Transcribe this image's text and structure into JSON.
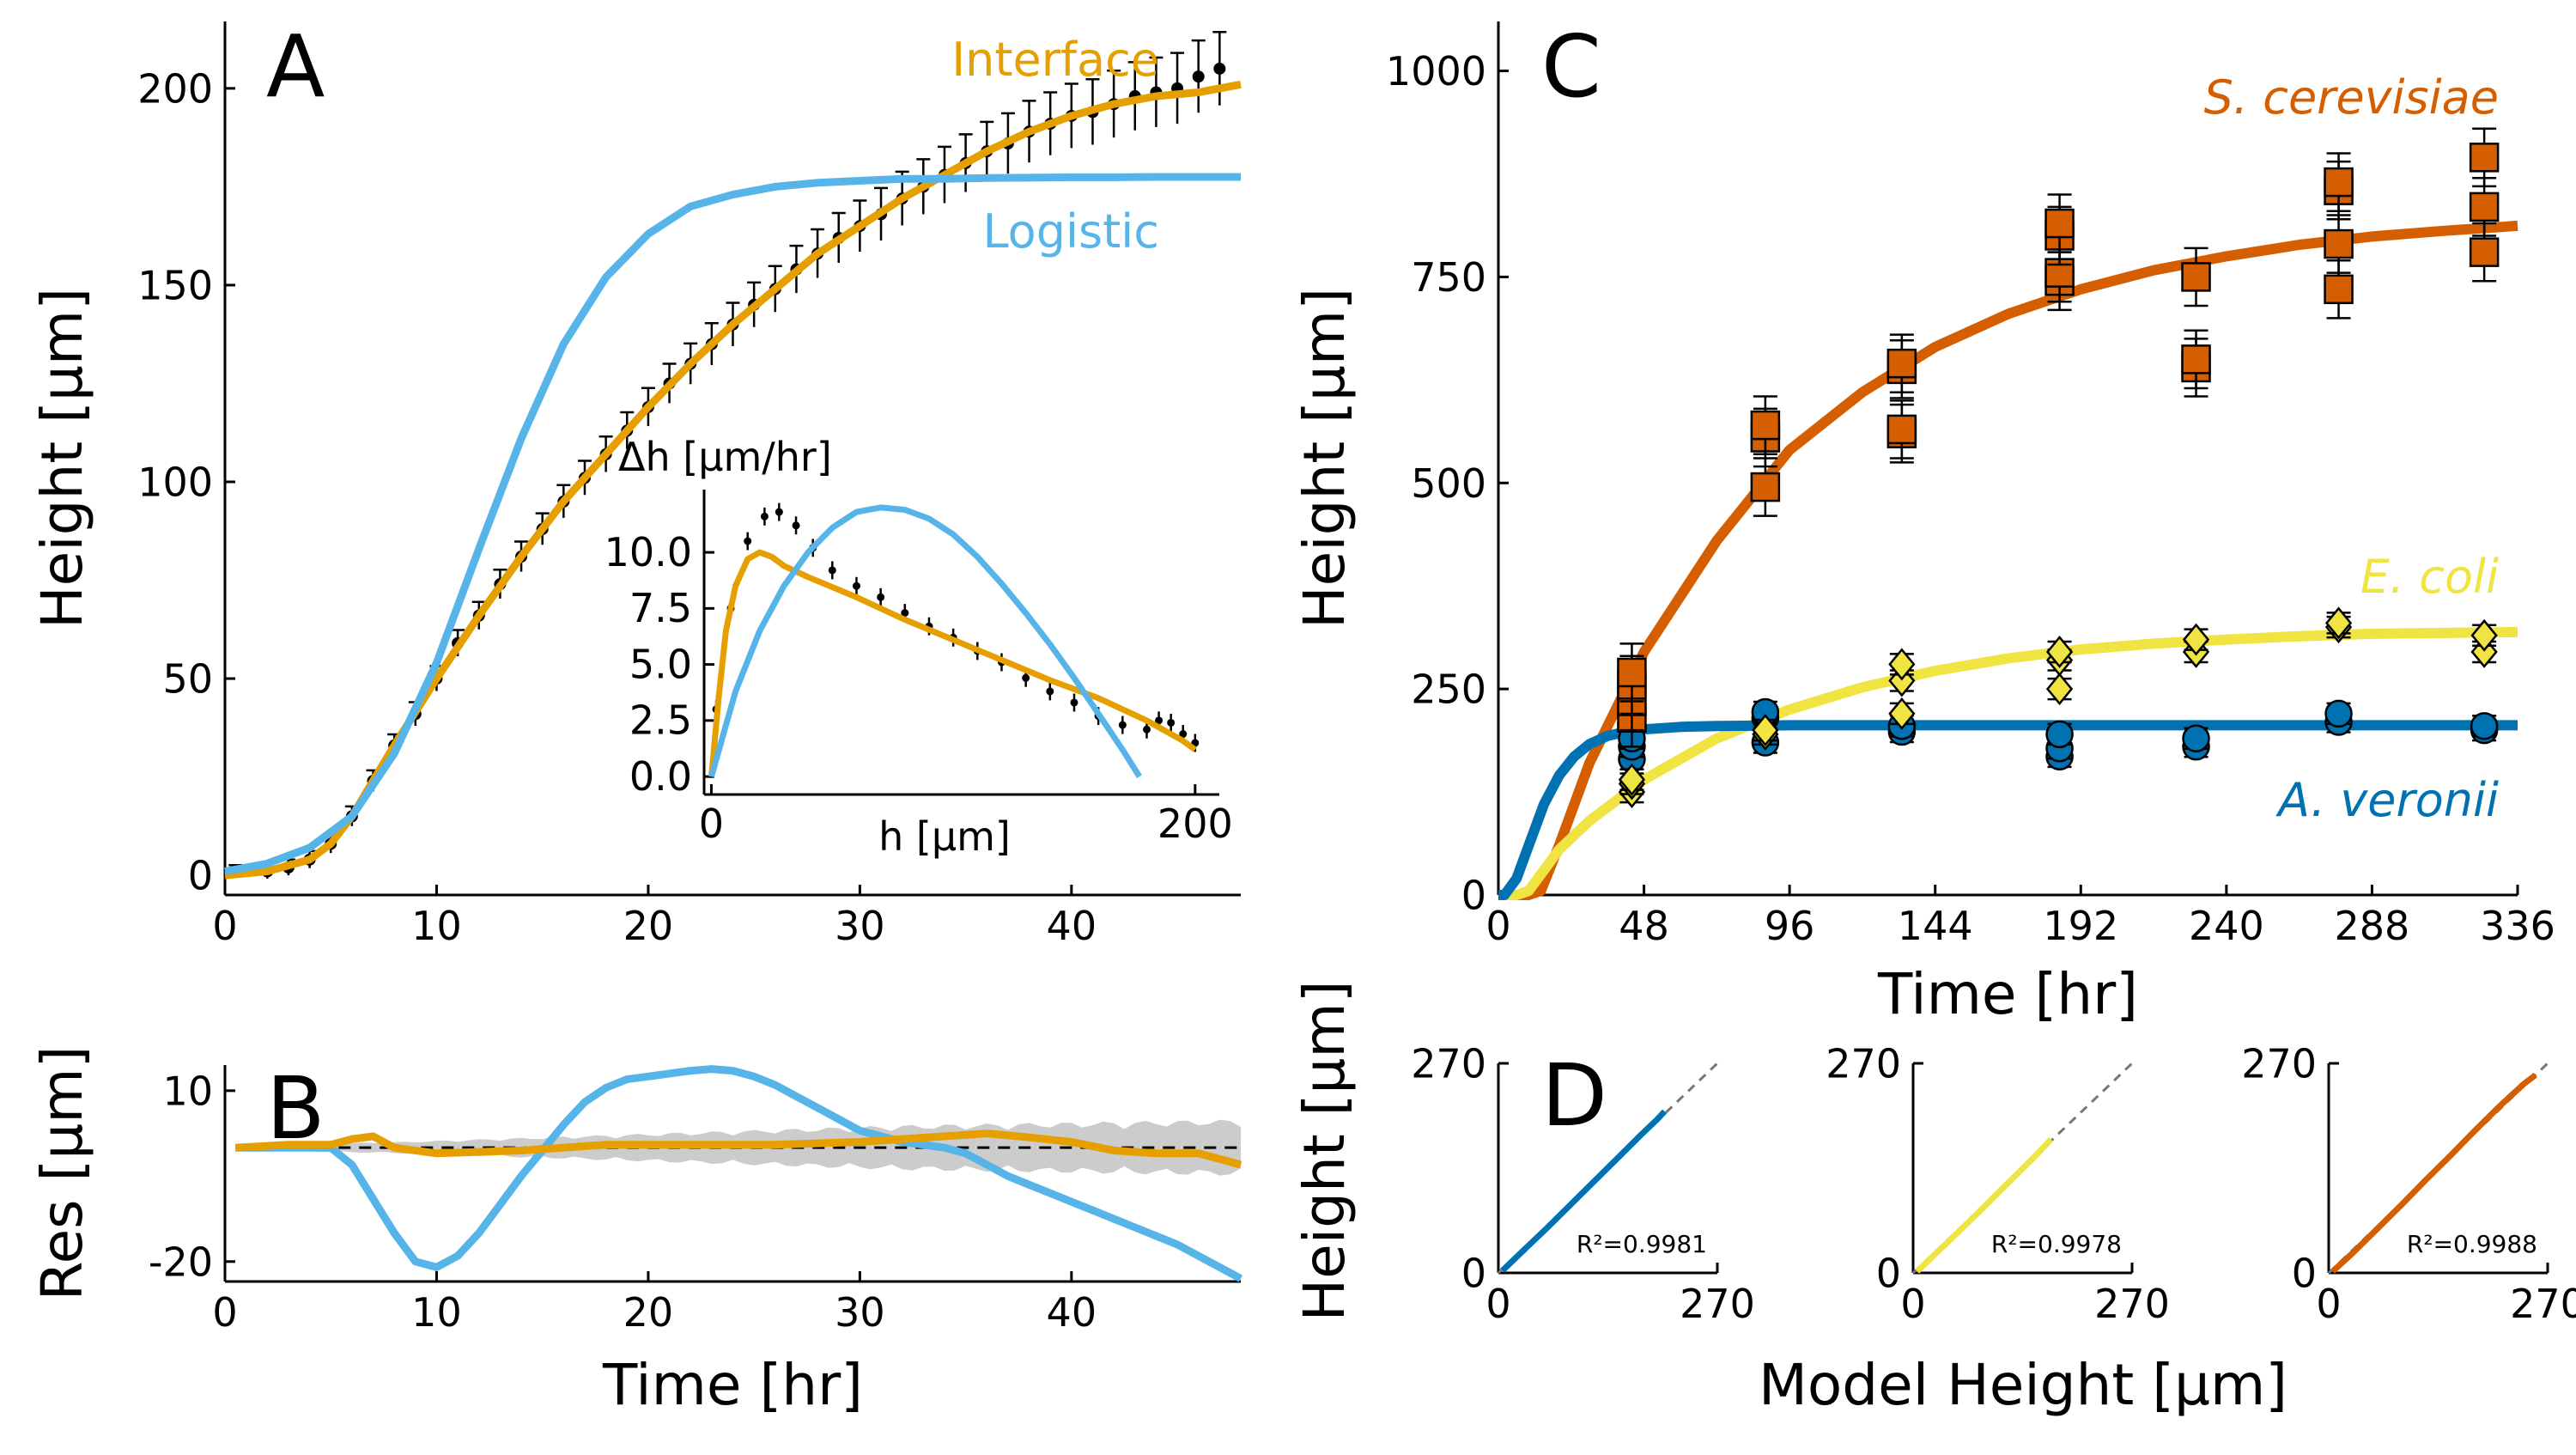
{
  "colors": {
    "interface": "#E69F00",
    "logistic": "#56B4E9",
    "cerevisiae": "#D55E00",
    "ecoli": "#F0E442",
    "veronii": "#0072B2",
    "data": "#000000",
    "band": "#BBBBBB"
  },
  "chart_data": [
    {
      "id": "A",
      "type": "line",
      "letter": "A",
      "xlabel": "",
      "ylabel": "Height [μm]",
      "xlim": [
        0,
        48
      ],
      "ylim": [
        -5,
        217
      ],
      "xticks": [
        0,
        10,
        20,
        30,
        40
      ],
      "yticks": [
        0,
        50,
        100,
        150,
        200
      ],
      "series": [
        {
          "name": "Interface",
          "x": [
            0,
            2,
            4,
            5,
            6,
            7,
            8,
            10,
            12,
            14,
            16,
            18,
            20,
            22,
            24,
            26,
            28,
            30,
            32,
            34,
            36,
            38,
            40,
            42,
            44,
            46,
            48
          ],
          "y": [
            0,
            1,
            4,
            8,
            15,
            24,
            33,
            50,
            66,
            81,
            95,
            107,
            119,
            130,
            140,
            149,
            158,
            165,
            172,
            178,
            184,
            189,
            193,
            196,
            198,
            199,
            201
          ]
        },
        {
          "name": "Logistic",
          "x": [
            0,
            2,
            4,
            6,
            8,
            10,
            12,
            14,
            16,
            18,
            20,
            22,
            24,
            26,
            28,
            30,
            32,
            34,
            36,
            38,
            40,
            42,
            44,
            46,
            48
          ],
          "y": [
            1,
            3,
            7,
            15,
            31,
            54,
            83,
            111,
            135,
            152,
            163,
            170,
            173,
            175,
            176,
            176.5,
            177,
            177,
            177.2,
            177.3,
            177.4,
            177.4,
            177.5,
            177.5,
            177.5
          ]
        }
      ],
      "observed": {
        "x": [
          0.5,
          2,
          3,
          4,
          5,
          6,
          7,
          8,
          9,
          10,
          11,
          12,
          13,
          14,
          15,
          16,
          17,
          18,
          19,
          20,
          21,
          22,
          23,
          24,
          25,
          26,
          27,
          28,
          29,
          30,
          31,
          32,
          33,
          34,
          35,
          36,
          37,
          38,
          39,
          40,
          41,
          42,
          43,
          44,
          45,
          46,
          47
        ],
        "y": [
          1,
          1,
          2,
          4,
          8,
          15,
          24,
          33,
          41,
          50,
          59,
          66,
          74,
          81,
          88,
          95,
          101,
          107,
          113,
          119,
          125,
          130,
          135,
          140,
          145,
          149,
          154,
          158,
          162,
          165,
          168,
          172,
          175,
          178,
          181,
          184,
          186,
          189,
          191,
          193,
          194,
          196,
          198,
          199,
          200,
          203,
          205
        ]
      },
      "annotations": [
        "Interface",
        "Logistic"
      ]
    },
    {
      "id": "A-inset",
      "type": "line",
      "xlabel": "h [μm]",
      "ylabel": "Δh [μm/hr]",
      "xlim": [
        -3,
        210
      ],
      "ylim": [
        -0.8,
        12.8
      ],
      "xticks": [
        0,
        200
      ],
      "yticks": [
        0.0,
        2.5,
        5.0,
        7.5,
        10.0
      ],
      "ytick_labels": [
        "0.0",
        "2.5",
        "5.0",
        "7.5",
        "10.0"
      ],
      "series": [
        {
          "name": "Interface",
          "x": [
            0,
            3,
            6,
            10,
            15,
            20,
            25,
            30,
            40,
            60,
            80,
            100,
            120,
            140,
            160,
            180,
            195,
            200
          ],
          "y": [
            0,
            3.5,
            6.5,
            8.5,
            9.7,
            10.0,
            9.8,
            9.4,
            8.9,
            8.0,
            7.0,
            6.1,
            5.2,
            4.3,
            3.5,
            2.5,
            1.6,
            1.2
          ]
        },
        {
          "name": "Logistic",
          "x": [
            0,
            10,
            20,
            30,
            40,
            50,
            60,
            70,
            80,
            90,
            100,
            110,
            120,
            130,
            140,
            150,
            160,
            170,
            177
          ],
          "y": [
            0,
            3.8,
            6.5,
            8.5,
            10.0,
            11.1,
            11.8,
            12.0,
            11.9,
            11.5,
            10.8,
            9.8,
            8.6,
            7.3,
            5.9,
            4.4,
            2.8,
            1.2,
            0
          ]
        }
      ],
      "observed": {
        "x": [
          2,
          8,
          15,
          22,
          28,
          35,
          42,
          50,
          60,
          70,
          80,
          90,
          100,
          110,
          120,
          130,
          140,
          150,
          160,
          170,
          180,
          185,
          190,
          195,
          200
        ],
        "y": [
          3.0,
          7.5,
          10.5,
          11.6,
          11.8,
          11.2,
          10.2,
          9.2,
          8.5,
          8.0,
          7.3,
          6.7,
          6.2,
          5.6,
          5.1,
          4.4,
          3.8,
          3.3,
          2.7,
          2.3,
          2.1,
          2.5,
          2.4,
          1.9,
          1.5
        ]
      }
    },
    {
      "id": "B",
      "type": "line",
      "letter": "B",
      "xlabel": "Time [hr]",
      "ylabel": "Res [μm]",
      "xlim": [
        0,
        48
      ],
      "ylim": [
        -23.5,
        14.5
      ],
      "xticks": [
        0,
        10,
        20,
        30,
        40
      ],
      "yticks": [
        10,
        -20
      ],
      "series": [
        {
          "name": "Logistic",
          "x": [
            0.5,
            3,
            5,
            6,
            7,
            8,
            9,
            10,
            11,
            12,
            13,
            14,
            15,
            16,
            17,
            18,
            19,
            20,
            21,
            22,
            23,
            24,
            25,
            26,
            27,
            28,
            29,
            30,
            31,
            32,
            33,
            34,
            35,
            36,
            37,
            38,
            39,
            40,
            41,
            42,
            43,
            44,
            45,
            46,
            47,
            48
          ],
          "y": [
            0,
            0,
            0,
            -3,
            -9,
            -15,
            -20,
            -21,
            -19,
            -15,
            -10,
            -5,
            -0.5,
            4,
            8,
            10.5,
            12,
            12.5,
            13,
            13.5,
            13.8,
            13.5,
            12.5,
            11,
            9,
            7,
            5,
            3,
            2,
            1,
            0.5,
            0,
            -1,
            -3,
            -5,
            -6.5,
            -8,
            -9.5,
            -11,
            -12.5,
            -14,
            -15.5,
            -17,
            -19,
            -21,
            -23
          ]
        },
        {
          "name": "Interface",
          "x": [
            0.5,
            3,
            5,
            6,
            7,
            8,
            10,
            14,
            18,
            22,
            26,
            30,
            32,
            34,
            36,
            38,
            40,
            42,
            44,
            46,
            47,
            48
          ],
          "y": [
            0,
            0.5,
            0.5,
            1.5,
            2.0,
            0,
            -1,
            -0.5,
            0.5,
            0.5,
            0.5,
            1.0,
            1.5,
            2.0,
            2.5,
            1.8,
            1.0,
            -0.5,
            -1.0,
            -1.0,
            -2.0,
            -3.0
          ]
        }
      ],
      "band": {
        "x": [
          0.5,
          8,
          16,
          24,
          32,
          40,
          48
        ],
        "half_width": [
          0.5,
          1.0,
          2.0,
          3.0,
          4.0,
          4.5,
          5.0
        ]
      },
      "reference_line": 0
    },
    {
      "id": "C",
      "type": "scatter",
      "letter": "C",
      "xlabel": "Time [hr]",
      "ylabel": "Height [μm]",
      "xlim": [
        0,
        336
      ],
      "ylim": [
        0,
        1060
      ],
      "xticks": [
        0,
        48,
        96,
        144,
        192,
        240,
        288,
        336
      ],
      "yticks": [
        0,
        250,
        500,
        750,
        1000
      ],
      "series": [
        {
          "name": "S. cerevisiae",
          "marker": "square",
          "fit": {
            "x": [
              0,
              10,
              14,
              20,
              30,
              48,
              72,
              96,
              120,
              144,
              168,
              192,
              216,
              240,
              264,
              288,
              312,
              336
            ],
            "y": [
              0,
              0,
              5,
              60,
              160,
              295,
              430,
              540,
              610,
              665,
              705,
              735,
              758,
              775,
              789,
              799,
              806,
              812
            ]
          },
          "points": {
            "x": [
              44,
              44,
              44,
              44,
              88,
              88,
              88,
              133,
              133,
              133,
              133,
              185,
              185,
              185,
              185,
              230,
              230,
              230,
              277,
              277,
              277,
              277,
              325,
              325,
              325
            ],
            "y": [
              215,
              235,
              255,
              270,
              495,
              555,
              570,
              560,
              565,
              638,
              645,
              745,
              755,
              800,
              815,
              640,
              650,
              750,
              735,
              790,
              855,
              865,
              780,
              835,
              895
            ]
          }
        },
        {
          "name": "E. coli",
          "marker": "diamond",
          "fit": {
            "x": [
              0,
              6,
              10,
              15,
              20,
              30,
              48,
              72,
              96,
              120,
              144,
              168,
              192,
              216,
              240,
              264,
              288,
              312,
              336
            ],
            "y": [
              0,
              0,
              5,
              30,
              55,
              90,
              140,
              190,
              225,
              252,
              272,
              287,
              298,
              305,
              310,
              314,
              317,
              318,
              319
            ]
          },
          "points": {
            "x": [
              44,
              44,
              44,
              88,
              88,
              133,
              133,
              133,
              185,
              185,
              185,
              230,
              230,
              277,
              277,
              325,
              325
            ],
            "y": [
              125,
              135,
              140,
              195,
              200,
              220,
              260,
              280,
              250,
              285,
              295,
              295,
              310,
              325,
              330,
              295,
              315
            ]
          }
        },
        {
          "name": "A. veronii",
          "marker": "circle",
          "fit": {
            "x": [
              0,
              2,
              6,
              10,
              15,
              20,
              25,
              30,
              36,
              42,
              48,
              60,
              72,
              96,
              120,
              144,
              192,
              240,
              288,
              336
            ],
            "y": [
              0,
              0,
              20,
              60,
              110,
              145,
              168,
              183,
              193,
              198,
              201,
              204,
              205,
              206,
              206,
              206,
              206,
              206,
              206,
              206
            ]
          },
          "points": {
            "x": [
              44,
              44,
              44,
              88,
              88,
              88,
              133,
              133,
              185,
              185,
              185,
              230,
              230,
              277,
              277,
              325,
              325
            ],
            "y": [
              165,
              180,
              190,
              185,
              215,
              222,
              198,
              205,
              168,
              178,
              195,
              180,
              190,
              210,
              220,
              200,
              205
            ]
          }
        }
      ],
      "annotations": [
        "S. cerevisiae",
        "E. coli",
        "A. veronii"
      ]
    },
    {
      "id": "D",
      "type": "line",
      "letter": "D",
      "xlabel": "Model Height [μm]",
      "ylabel": "Height [μm]",
      "subplots": [
        {
          "series": "A. veronii",
          "xlim": [
            0,
            270
          ],
          "ylim": [
            0,
            270
          ],
          "xticks": [
            0,
            270
          ],
          "yticks": [
            0,
            270
          ],
          "r2": "R²=0.9981",
          "x": [
            5,
            30,
            60,
            90,
            120,
            150,
            175,
            195,
            205
          ],
          "y": [
            3,
            28,
            58,
            89,
            120,
            151,
            177,
            197,
            208
          ]
        },
        {
          "series": "E. coli",
          "xlim": [
            0,
            270
          ],
          "ylim": [
            0,
            270
          ],
          "xticks": [
            0,
            270
          ],
          "yticks": [
            0,
            270
          ],
          "r2": "R²=0.9978",
          "x": [
            5,
            25,
            50,
            75,
            100,
            125,
            150,
            170
          ],
          "y": [
            2,
            22,
            47,
            72,
            98,
            124,
            150,
            172
          ]
        },
        {
          "series": "S. cerevisiae",
          "xlim": [
            0,
            270
          ],
          "ylim": [
            0,
            270
          ],
          "xticks": [
            0,
            270
          ],
          "yticks": [
            0,
            270
          ],
          "r2": "R²=0.9988",
          "x": [
            5,
            30,
            60,
            90,
            120,
            150,
            180,
            210,
            240,
            255
          ],
          "y": [
            2,
            26,
            57,
            88,
            120,
            151,
            183,
            214,
            243,
            255
          ]
        }
      ]
    }
  ]
}
